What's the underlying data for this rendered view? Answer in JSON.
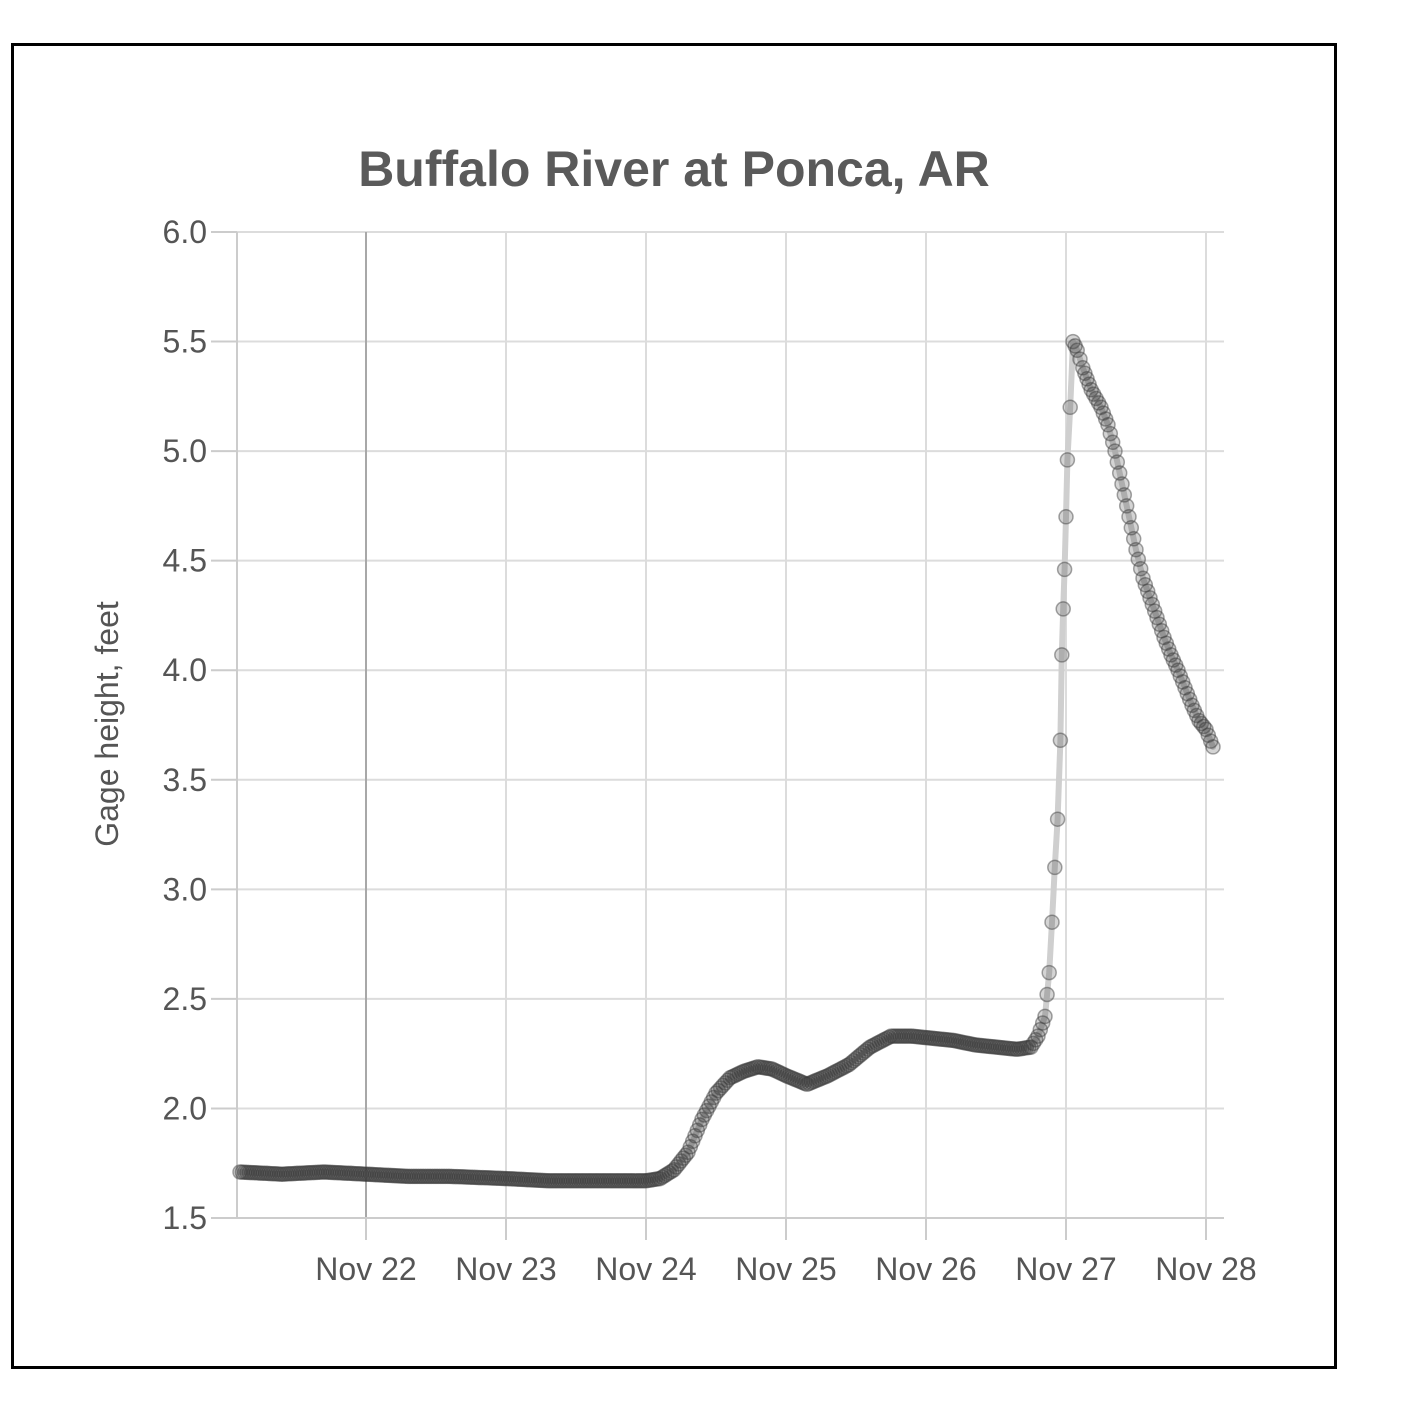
{
  "chart_data": {
    "type": "scatter",
    "title": "Buffalo River at Ponca, AR",
    "xlabel": "",
    "ylabel": "Gage height, feet",
    "ylim": [
      1.5,
      6.0
    ],
    "xlim": [
      21.1,
      28.1
    ],
    "y_ticks": [
      "1.5",
      "2.0",
      "2.5",
      "3.0",
      "3.5",
      "4.0",
      "4.5",
      "5.0",
      "5.5",
      "6.0"
    ],
    "x_ticks": [
      {
        "label": "Nov 22",
        "value": 22
      },
      {
        "label": "Nov 23",
        "value": 23
      },
      {
        "label": "Nov 24",
        "value": 24
      },
      {
        "label": "Nov 25",
        "value": 25
      },
      {
        "label": "Nov 26",
        "value": 26
      },
      {
        "label": "Nov 27",
        "value": 27
      },
      {
        "label": "Nov 28",
        "value": 28
      }
    ],
    "grid": true,
    "marker_color": "#3a3a3a",
    "line_color": "#cfcfcf",
    "series": [
      {
        "name": "Gage height",
        "points": [
          [
            21.1,
            1.71
          ],
          [
            21.4,
            1.7
          ],
          [
            21.7,
            1.71
          ],
          [
            22.0,
            1.7
          ],
          [
            22.3,
            1.69
          ],
          [
            22.6,
            1.69
          ],
          [
            23.0,
            1.68
          ],
          [
            23.3,
            1.67
          ],
          [
            23.6,
            1.67
          ],
          [
            24.0,
            1.67
          ],
          [
            24.1,
            1.68
          ],
          [
            24.2,
            1.72
          ],
          [
            24.3,
            1.8
          ],
          [
            24.4,
            1.95
          ],
          [
            24.5,
            2.07
          ],
          [
            24.6,
            2.14
          ],
          [
            24.7,
            2.17
          ],
          [
            24.8,
            2.19
          ],
          [
            24.9,
            2.18
          ],
          [
            25.0,
            2.15
          ],
          [
            25.15,
            2.11
          ],
          [
            25.3,
            2.15
          ],
          [
            25.45,
            2.2
          ],
          [
            25.6,
            2.28
          ],
          [
            25.75,
            2.33
          ],
          [
            25.9,
            2.33
          ],
          [
            26.05,
            2.32
          ],
          [
            26.2,
            2.31
          ],
          [
            26.35,
            2.29
          ],
          [
            26.5,
            2.28
          ],
          [
            26.65,
            2.27
          ],
          [
            26.75,
            2.28
          ],
          [
            26.8,
            2.33
          ],
          [
            26.85,
            2.42
          ],
          [
            26.88,
            2.62
          ],
          [
            26.9,
            2.85
          ],
          [
            26.92,
            3.1
          ],
          [
            26.94,
            3.32
          ],
          [
            26.96,
            3.68
          ],
          [
            26.97,
            4.07
          ],
          [
            26.98,
            4.28
          ],
          [
            26.99,
            4.46
          ],
          [
            27.0,
            4.7
          ],
          [
            27.01,
            4.96
          ],
          [
            27.03,
            5.2
          ],
          [
            27.05,
            5.5
          ],
          [
            27.08,
            5.46
          ],
          [
            27.12,
            5.38
          ],
          [
            27.18,
            5.28
          ],
          [
            27.25,
            5.2
          ],
          [
            27.3,
            5.12
          ],
          [
            27.35,
            5.0
          ],
          [
            27.4,
            4.85
          ],
          [
            27.45,
            4.7
          ],
          [
            27.5,
            4.55
          ],
          [
            27.55,
            4.42
          ],
          [
            27.6,
            4.33
          ],
          [
            27.65,
            4.24
          ],
          [
            27.7,
            4.15
          ],
          [
            27.75,
            4.07
          ],
          [
            27.8,
            4.0
          ],
          [
            27.85,
            3.92
          ],
          [
            27.9,
            3.84
          ],
          [
            27.95,
            3.77
          ],
          [
            28.0,
            3.73
          ],
          [
            28.05,
            3.65
          ]
        ]
      }
    ]
  }
}
